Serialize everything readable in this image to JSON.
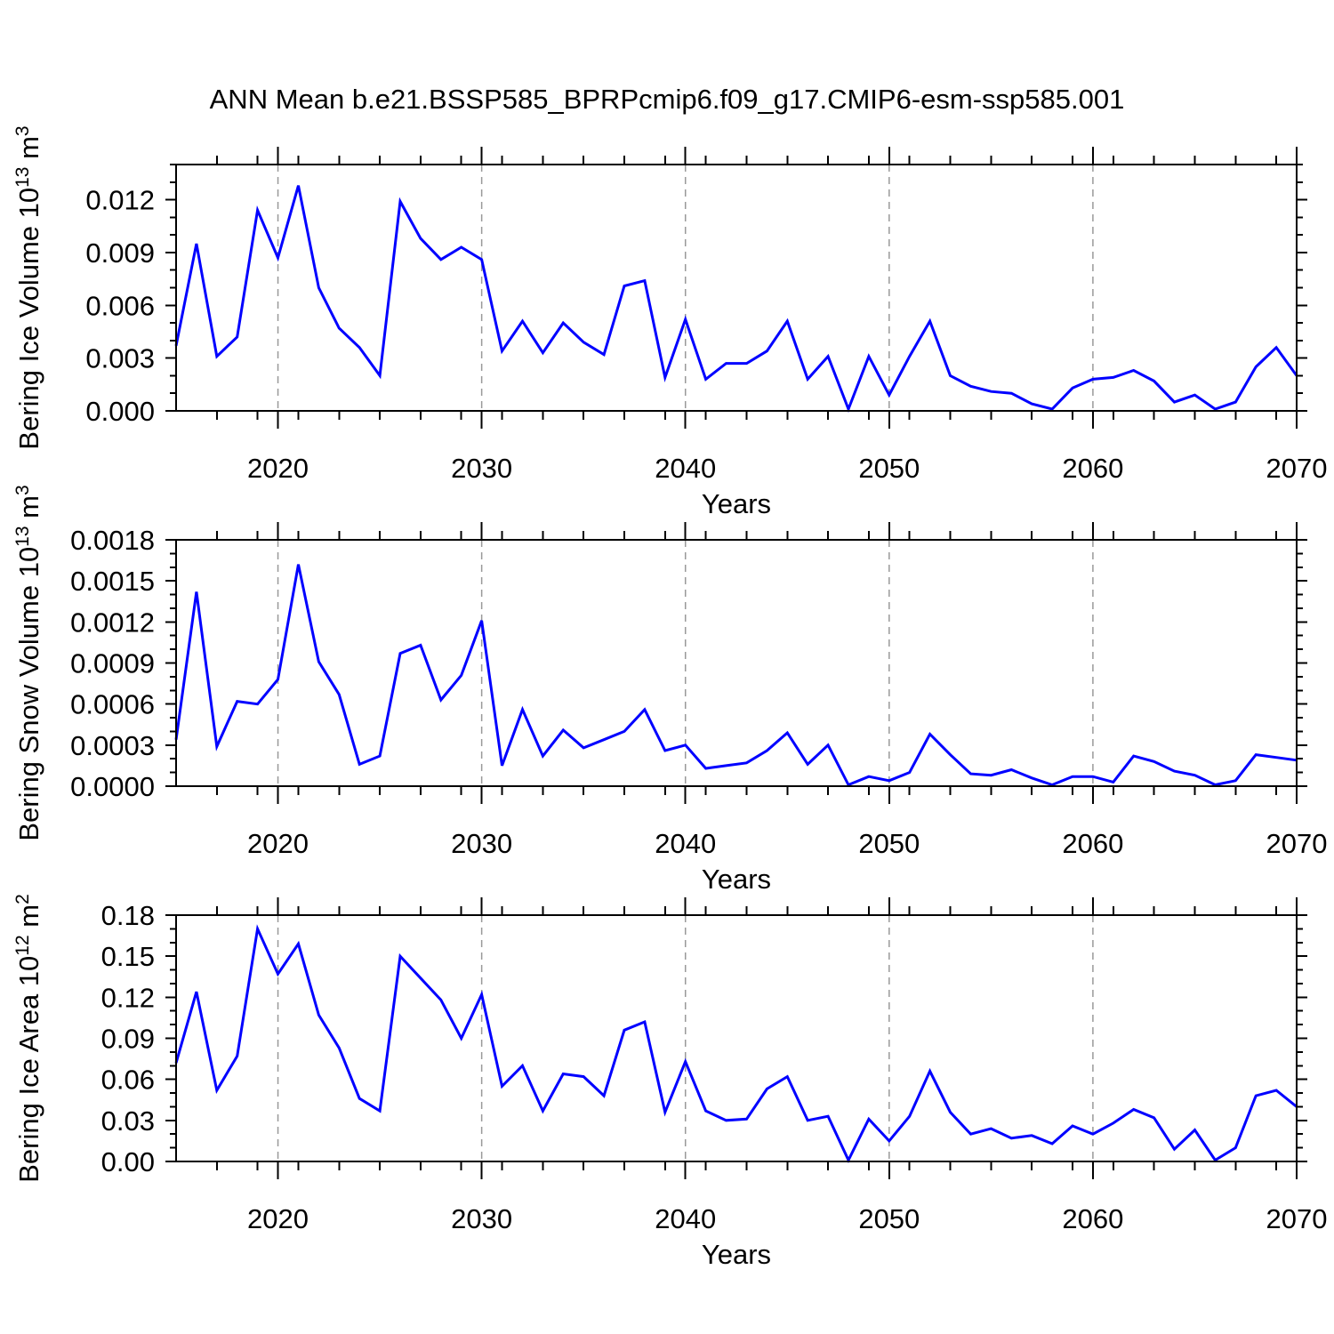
{
  "chart_data": {
    "type": "line",
    "title": "ANN Mean b.e21.BSSP585_BPRPcmip6.f09_g17.CMIP6-esm-ssp585.001",
    "x": {
      "label": "Years",
      "min": 2015,
      "max": 2070,
      "major_ticks": [
        2020,
        2030,
        2040,
        2050,
        2060,
        2070
      ],
      "tick_labels": [
        "2020",
        "2030",
        "2040",
        "2050",
        "2060",
        "2070"
      ],
      "minor_step": 2,
      "gridline_years": [
        2020,
        2030,
        2040,
        2050,
        2060
      ]
    },
    "start_year": 2015,
    "panels": [
      {
        "id": "bering-ice-volume",
        "ylabel": {
          "prefix": "Bering Ice Volume 10",
          "exponent": "13",
          "unit": " m",
          "unit_exponent": "3"
        },
        "y": {
          "min": 0,
          "max": 0.014,
          "major_step": 0.003,
          "minor_step": 0.001,
          "decimals": 3,
          "tick_labels": [
            "0.000",
            "0.003",
            "0.006",
            "0.009",
            "0.012"
          ]
        },
        "values": [
          0.0037,
          0.0095,
          0.0031,
          0.0042,
          0.0114,
          0.0087,
          0.0128,
          0.007,
          0.0047,
          0.0036,
          0.002,
          0.0119,
          0.0098,
          0.0086,
          0.0093,
          0.0086,
          0.0034,
          0.0051,
          0.0033,
          0.005,
          0.0039,
          0.0032,
          0.0071,
          0.0074,
          0.0019,
          0.0052,
          0.0018,
          0.0027,
          0.0027,
          0.0034,
          0.0051,
          0.0018,
          0.0031,
          0.0001,
          0.0031,
          0.0009,
          0.0031,
          0.0051,
          0.002,
          0.0014,
          0.0011,
          0.001,
          0.0004,
          0.0001,
          0.0013,
          0.0018,
          0.0019,
          0.0023,
          0.0017,
          0.0005,
          0.0009,
          0.0001,
          0.0005,
          0.0025,
          0.0036,
          0.002
        ]
      },
      {
        "id": "bering-snow-volume",
        "ylabel": {
          "prefix": "Bering Snow Volume 10",
          "exponent": "13",
          "unit": " m",
          "unit_exponent": "3"
        },
        "y": {
          "min": 0,
          "max": 0.0018,
          "major_step": 0.0003,
          "minor_step": 0.0001,
          "decimals": 4,
          "tick_labels": [
            "0.0000",
            "0.0003",
            "0.0006",
            "0.0009",
            "0.0012",
            "0.0015",
            "0.0018"
          ]
        },
        "values": [
          0.00034,
          0.00142,
          0.00029,
          0.00062,
          0.0006,
          0.00078,
          0.00162,
          0.00091,
          0.00067,
          0.00016,
          0.00022,
          0.00097,
          0.00103,
          0.00063,
          0.00081,
          0.00121,
          0.00015,
          0.00056,
          0.00022,
          0.00041,
          0.00028,
          0.00034,
          0.0004,
          0.00056,
          0.00026,
          0.0003,
          0.00013,
          0.00015,
          0.00017,
          0.00026,
          0.00039,
          0.00016,
          0.0003,
          1e-05,
          7e-05,
          4e-05,
          0.0001,
          0.00038,
          0.00023,
          9e-05,
          8e-05,
          0.00012,
          6e-05,
          1e-05,
          7e-05,
          7e-05,
          3e-05,
          0.00022,
          0.00018,
          0.00011,
          8e-05,
          1e-05,
          4e-05,
          0.00023,
          0.00021,
          0.00019
        ]
      },
      {
        "id": "bering-ice-area",
        "ylabel": {
          "prefix": "Bering Ice Area 10",
          "exponent": "12",
          "unit": " m",
          "unit_exponent": "2"
        },
        "y": {
          "min": 0,
          "max": 0.18,
          "major_step": 0.03,
          "minor_step": 0.01,
          "decimals": 2,
          "tick_labels": [
            "0.00",
            "0.03",
            "0.06",
            "0.09",
            "0.12",
            "0.15",
            "0.18"
          ]
        },
        "values": [
          0.072,
          0.124,
          0.052,
          0.077,
          0.17,
          0.137,
          0.159,
          0.107,
          0.083,
          0.046,
          0.037,
          0.15,
          0.134,
          0.118,
          0.09,
          0.122,
          0.055,
          0.07,
          0.037,
          0.064,
          0.062,
          0.048,
          0.096,
          0.102,
          0.036,
          0.073,
          0.037,
          0.03,
          0.031,
          0.053,
          0.062,
          0.03,
          0.033,
          0.001,
          0.031,
          0.015,
          0.033,
          0.066,
          0.036,
          0.02,
          0.024,
          0.017,
          0.019,
          0.013,
          0.026,
          0.02,
          0.028,
          0.038,
          0.032,
          0.009,
          0.023,
          0.001,
          0.01,
          0.048,
          0.052,
          0.04
        ]
      }
    ],
    "style": {
      "line_color": "#0000ff",
      "frame_color": "#000000",
      "grid_color": "#999999",
      "background": "#ffffff"
    }
  }
}
